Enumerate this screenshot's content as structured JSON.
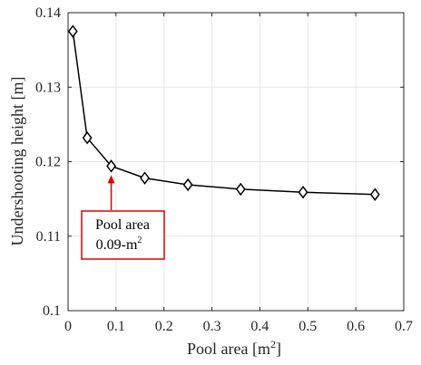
{
  "chart_data": {
    "type": "line",
    "xlabel": "Pool area [m",
    "xlabel_sup": "2",
    "xlabel_end": "]",
    "ylabel": "Undershooting height [m]",
    "xlim": [
      0,
      0.7
    ],
    "ylim": [
      0.1,
      0.14
    ],
    "xticks": [
      0,
      0.1,
      0.2,
      0.3,
      0.4,
      0.5,
      0.6,
      0.7
    ],
    "xtick_labels": [
      "0",
      "0.1",
      "0.2",
      "0.3",
      "0.4",
      "0.5",
      "0.6",
      "0.7"
    ],
    "yticks": [
      0.1,
      0.11,
      0.12,
      0.13,
      0.14
    ],
    "ytick_labels": [
      "0.1",
      "0.11",
      "0.12",
      "0.13",
      "0.14"
    ],
    "grid": true,
    "marker": "diamond",
    "series": [
      {
        "x": [
          0.01,
          0.04,
          0.09,
          0.16,
          0.25,
          0.36,
          0.49,
          0.64
        ],
        "y": [
          0.1375,
          0.1232,
          0.1194,
          0.1178,
          0.1169,
          0.1163,
          0.1159,
          0.1156
        ]
      }
    ],
    "annotation": {
      "line1": "Pool area",
      "line2": "0.09-m",
      "line2_sup": "2",
      "target_x": 0.09,
      "target_y": 0.1194,
      "color": "#e00000"
    },
    "line_color": "#000000",
    "grid_color": "#e6e6e6"
  }
}
